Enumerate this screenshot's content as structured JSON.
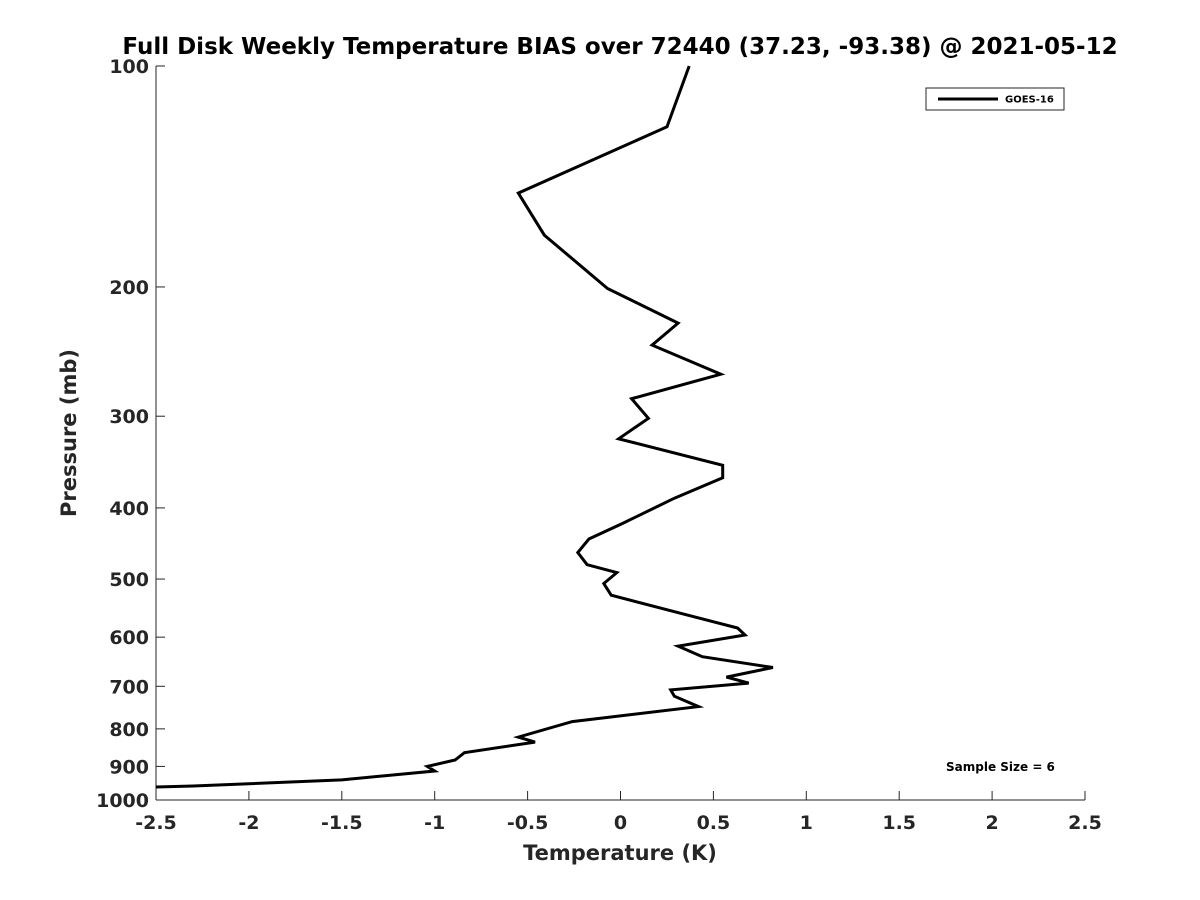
{
  "chart_data": {
    "type": "line",
    "title": "Full Disk Weekly Temperature BIAS over 72440 (37.23, -93.38) @ 2021-05-12",
    "xlabel": "Temperature (K)",
    "ylabel": "Pressure (mb)",
    "xlim": [
      -2.5,
      2.5
    ],
    "ylim": [
      100,
      1000
    ],
    "y_scale": "log",
    "y_reversed": true,
    "x_ticks": [
      "-2.5",
      "-2",
      "-1.5",
      "-1",
      "-0.5",
      "0",
      "0.5",
      "1",
      "1.5",
      "2",
      "2.5"
    ],
    "y_ticks": [
      "100",
      "200",
      "300",
      "400",
      "500",
      "600",
      "700",
      "800",
      "900",
      "1000"
    ],
    "grid": false,
    "legend_position": "top-right",
    "annotation": "Sample Size = 6",
    "series": [
      {
        "name": "GOES-16",
        "color": "#000000",
        "points": [
          [
            0.37,
            100
          ],
          [
            0.25,
            121
          ],
          [
            -0.55,
            149
          ],
          [
            -0.41,
            170
          ],
          [
            -0.07,
            201
          ],
          [
            0.31,
            224
          ],
          [
            0.17,
            240
          ],
          [
            0.54,
            263
          ],
          [
            0.06,
            284
          ],
          [
            0.15,
            302
          ],
          [
            -0.01,
            322
          ],
          [
            0.55,
            350
          ],
          [
            0.55,
            364
          ],
          [
            0.29,
            388
          ],
          [
            0.01,
            420
          ],
          [
            -0.17,
            441
          ],
          [
            -0.23,
            460
          ],
          [
            -0.18,
            478
          ],
          [
            -0.02,
            490
          ],
          [
            -0.09,
            507
          ],
          [
            -0.05,
            526
          ],
          [
            0.35,
            559
          ],
          [
            0.63,
            583
          ],
          [
            0.67,
            596
          ],
          [
            0.31,
            617
          ],
          [
            0.44,
            638
          ],
          [
            0.82,
            660
          ],
          [
            0.57,
            680
          ],
          [
            0.69,
            693
          ],
          [
            0.27,
            708
          ],
          [
            0.29,
            722
          ],
          [
            0.42,
            746
          ],
          [
            -0.26,
            782
          ],
          [
            -0.55,
            821
          ],
          [
            -0.46,
            834
          ],
          [
            -0.84,
            862
          ],
          [
            -0.89,
            882
          ],
          [
            -1.04,
            900
          ],
          [
            -1.0,
            913
          ],
          [
            -1.5,
            939
          ],
          [
            -2.3,
            957
          ],
          [
            -2.5,
            960
          ]
        ]
      }
    ]
  }
}
